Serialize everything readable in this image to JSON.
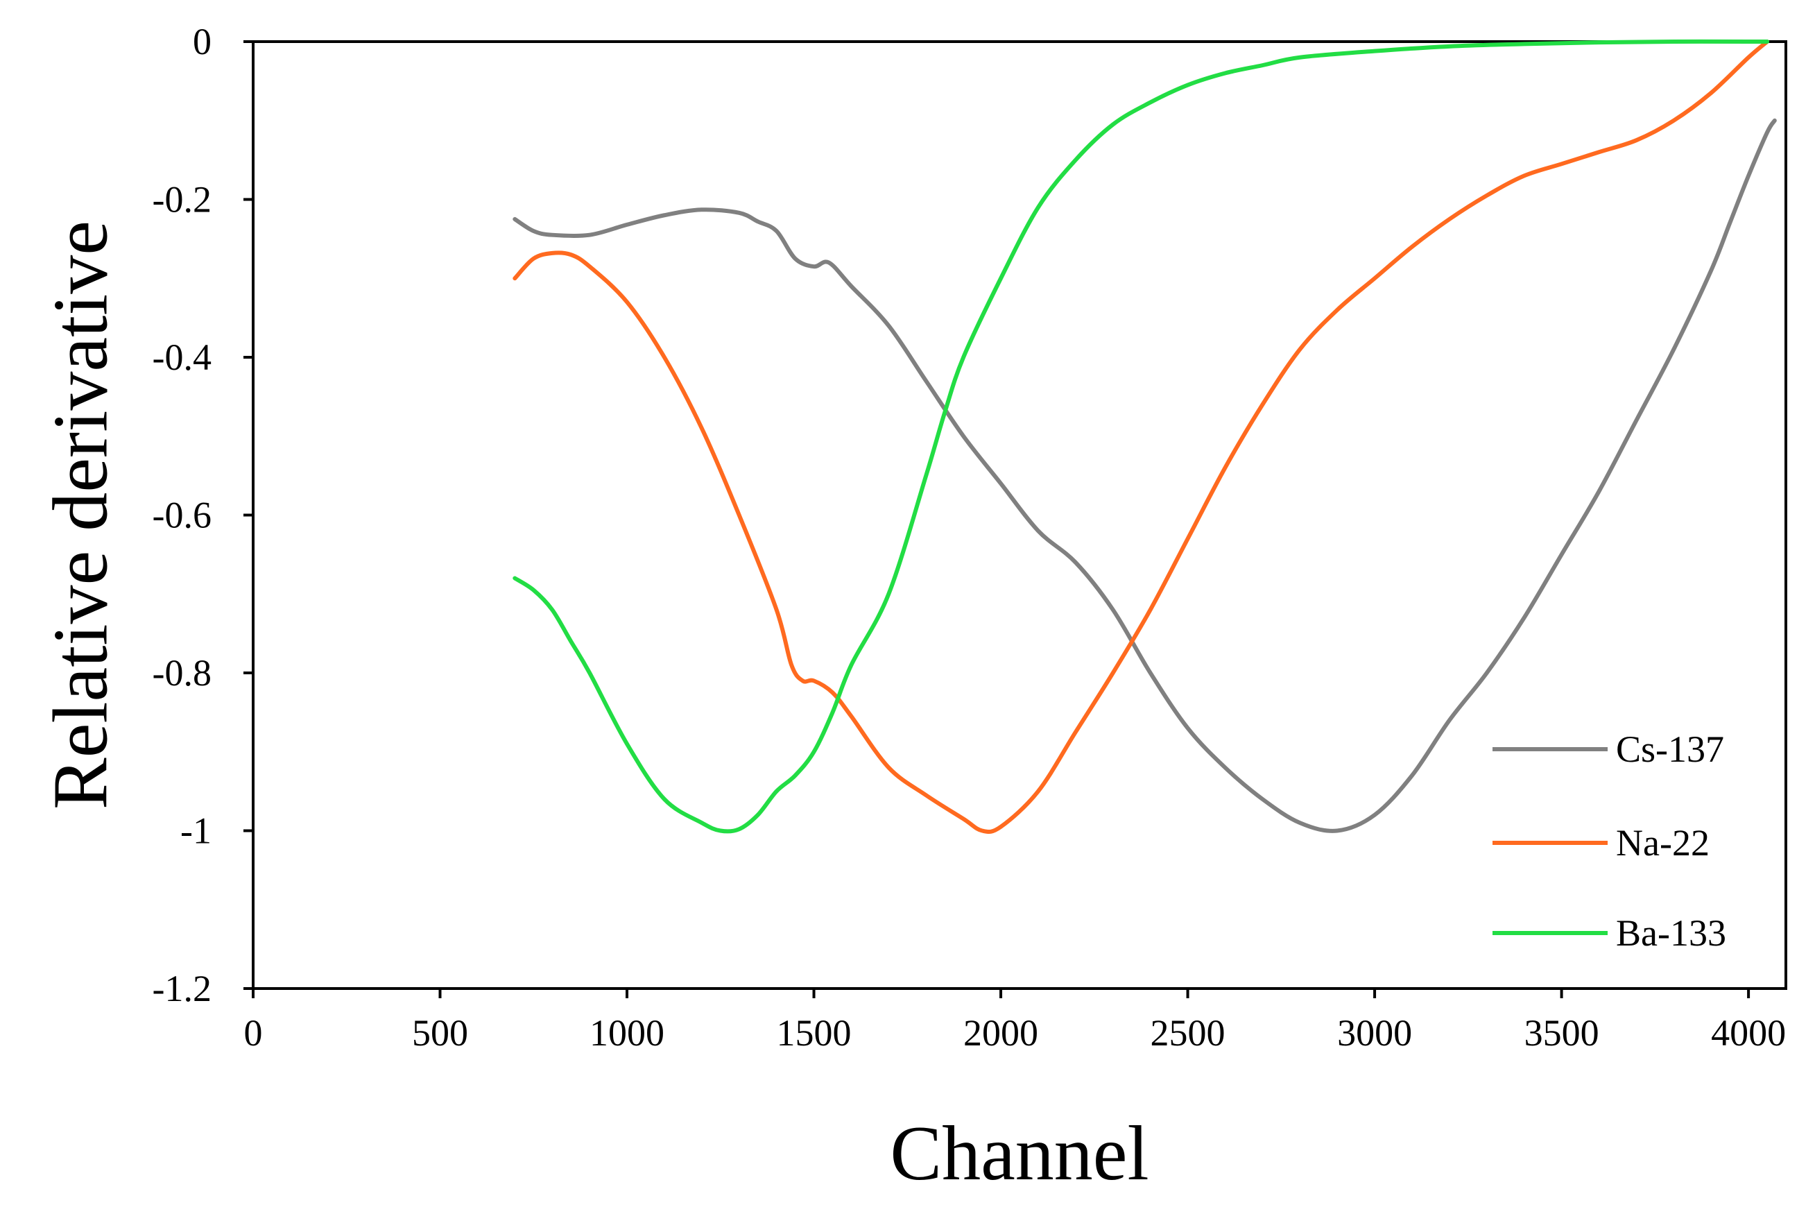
{
  "chart_data": {
    "type": "line",
    "title": "",
    "xlabel": "Channel",
    "ylabel": "Relative derivative",
    "xlim": [
      0,
      4100
    ],
    "ylim": [
      -1.2,
      0
    ],
    "xticks": [
      0,
      500,
      1000,
      1500,
      2000,
      2500,
      3000,
      3500,
      4000
    ],
    "yticks": [
      0,
      -0.2,
      -0.4,
      -0.6,
      -0.8,
      -1,
      -1.2
    ],
    "xtick_labels": [
      "0",
      "500",
      "1000",
      "1500",
      "2000",
      "2500",
      "3000",
      "3500",
      "4000"
    ],
    "ytick_labels": [
      "0",
      "-0.2",
      "-0.4",
      "-0.6",
      "-0.8",
      "-1",
      "-1.2"
    ],
    "grid": false,
    "legend_position": "bottom-right",
    "series": [
      {
        "name": "Cs-137",
        "color": "#808080",
        "x": [
          700,
          750,
          800,
          900,
          1000,
          1100,
          1200,
          1300,
          1350,
          1400,
          1450,
          1500,
          1540,
          1600,
          1700,
          1800,
          1900,
          2000,
          2100,
          2200,
          2300,
          2400,
          2500,
          2600,
          2700,
          2800,
          2900,
          3000,
          3100,
          3200,
          3300,
          3400,
          3500,
          3600,
          3700,
          3800,
          3900,
          3950,
          4000,
          4050,
          4070
        ],
        "y": [
          -0.225,
          -0.24,
          -0.245,
          -0.245,
          -0.232,
          -0.22,
          -0.213,
          -0.217,
          -0.228,
          -0.24,
          -0.275,
          -0.285,
          -0.28,
          -0.31,
          -0.36,
          -0.43,
          -0.5,
          -0.56,
          -0.62,
          -0.66,
          -0.72,
          -0.8,
          -0.87,
          -0.92,
          -0.96,
          -0.99,
          -1.0,
          -0.98,
          -0.93,
          -0.86,
          -0.8,
          -0.73,
          -0.65,
          -0.57,
          -0.48,
          -0.39,
          -0.29,
          -0.23,
          -0.17,
          -0.115,
          -0.1
        ]
      },
      {
        "name": "Na-22",
        "color": "#ff6a1f",
        "x": [
          700,
          750,
          800,
          850,
          900,
          1000,
          1100,
          1200,
          1300,
          1400,
          1440,
          1470,
          1500,
          1550,
          1600,
          1700,
          1800,
          1900,
          1950,
          2000,
          2100,
          2200,
          2300,
          2400,
          2500,
          2600,
          2700,
          2800,
          2900,
          3000,
          3100,
          3200,
          3300,
          3400,
          3500,
          3600,
          3700,
          3800,
          3900,
          4000,
          4050
        ],
        "y": [
          -0.3,
          -0.275,
          -0.268,
          -0.27,
          -0.285,
          -0.33,
          -0.4,
          -0.49,
          -0.6,
          -0.72,
          -0.79,
          -0.81,
          -0.81,
          -0.825,
          -0.855,
          -0.92,
          -0.955,
          -0.985,
          -1.0,
          -0.995,
          -0.95,
          -0.875,
          -0.8,
          -0.72,
          -0.63,
          -0.54,
          -0.46,
          -0.39,
          -0.34,
          -0.3,
          -0.26,
          -0.225,
          -0.195,
          -0.17,
          -0.155,
          -0.14,
          -0.125,
          -0.1,
          -0.065,
          -0.02,
          0.0
        ]
      },
      {
        "name": "Ba-133",
        "color": "#22dd44",
        "x": [
          700,
          750,
          800,
          850,
          900,
          1000,
          1100,
          1200,
          1250,
          1300,
          1350,
          1400,
          1450,
          1500,
          1550,
          1600,
          1700,
          1800,
          1850,
          1900,
          2000,
          2100,
          2200,
          2300,
          2400,
          2500,
          2600,
          2700,
          2800,
          3000,
          3200,
          3400,
          3600,
          3800,
          4000,
          4050
        ],
        "y": [
          -0.68,
          -0.695,
          -0.72,
          -0.76,
          -0.8,
          -0.89,
          -0.96,
          -0.99,
          -1.0,
          -0.998,
          -0.98,
          -0.95,
          -0.93,
          -0.9,
          -0.85,
          -0.79,
          -0.7,
          -0.55,
          -0.47,
          -0.4,
          -0.3,
          -0.21,
          -0.15,
          -0.105,
          -0.077,
          -0.055,
          -0.04,
          -0.03,
          -0.02,
          -0.012,
          -0.006,
          -0.003,
          -0.001,
          0.0,
          0.0,
          0.0
        ]
      }
    ]
  }
}
